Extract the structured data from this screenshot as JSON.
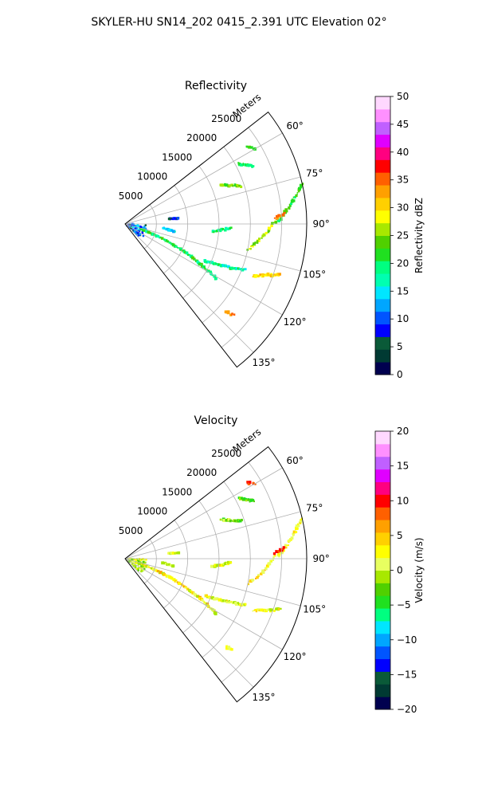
{
  "figure": {
    "suptitle": "SKYLER-HU  SN14_202  0415_2.391 UTC Elevation 02°"
  },
  "colors": {
    "reflectivity_cmap": [
      "#00004f",
      "#003a33",
      "#0a5a38",
      "#0000ff",
      "#0055ff",
      "#00a6ff",
      "#00e6ff",
      "#00ffb0",
      "#00ff80",
      "#20e020",
      "#50d000",
      "#a8e800",
      "#ffff00",
      "#ffd000",
      "#ffa000",
      "#ff6000",
      "#ff0000",
      "#ff0080",
      "#e000ff",
      "#c060ff",
      "#ff90ff",
      "#ffd8ff"
    ],
    "velocity_cmap": [
      "#00004f",
      "#003a33",
      "#0a5a38",
      "#0000ff",
      "#0055ff",
      "#00a6ff",
      "#00e6ff",
      "#00ff80",
      "#20e020",
      "#50d000",
      "#a8e800",
      "#e8ff60",
      "#ffff00",
      "#ffd000",
      "#ffa000",
      "#ff6000",
      "#ff0000",
      "#ff0080",
      "#e000ff",
      "#c060ff",
      "#ff90ff",
      "#ffd8ff"
    ]
  },
  "chart_data": [
    {
      "type": "heatmap",
      "projection": "polar-sector",
      "title": "Reflectivity",
      "range_axis_label": "Meters",
      "range_ticks": [
        5000,
        10000,
        15000,
        20000,
        25000
      ],
      "range_tick_labels": [
        "5000",
        "10000",
        "15000",
        "20000",
        "25000"
      ],
      "rmax": 29000,
      "azimuth_range": [
        52,
        142
      ],
      "azimuth_ticks": [
        60,
        75,
        90,
        105,
        120,
        135
      ],
      "azimuth_tick_labels": [
        "60°",
        "75°",
        "90°",
        "105°",
        "120°",
        "135°"
      ],
      "grid": true,
      "colorbar": {
        "label": "Reflectivity dBZ",
        "min": 0,
        "max": 50,
        "ticks": [
          0,
          5,
          10,
          15,
          20,
          25,
          30,
          35,
          40,
          45,
          50
        ],
        "tick_labels": [
          "0",
          "5",
          "10",
          "15",
          "20",
          "25",
          "30",
          "35",
          "40",
          "45",
          "50"
        ]
      },
      "echo_bands": [
        {
          "az_start": 108,
          "r_start": 2500,
          "az_end": 121,
          "r_end": 17000,
          "value": 20,
          "spread": 4
        },
        {
          "az_start": 115,
          "r_start": 14000,
          "az_end": 111,
          "r_end": 20500,
          "value": 18,
          "spread": 3
        },
        {
          "az_start": 112,
          "r_start": 22000,
          "az_end": 108,
          "r_end": 26000,
          "value": 30,
          "spread": 3
        },
        {
          "az_start": 102,
          "r_start": 20000,
          "az_end": 89,
          "r_end": 24000,
          "value": 26,
          "spread": 3
        },
        {
          "az_start": 89,
          "r_start": 24500,
          "az_end": 77,
          "r_end": 29000,
          "value": 22,
          "spread": 2
        },
        {
          "az_start": 88,
          "r_start": 24000,
          "az_end": 86,
          "r_end": 25500,
          "value": 34,
          "spread": 2
        },
        {
          "az_start": 95,
          "r_start": 14000,
          "az_end": 92,
          "r_end": 17000,
          "value": 20,
          "spread": 3
        },
        {
          "az_start": 131,
          "r_start": 21500,
          "az_end": 130,
          "r_end": 22500,
          "value": 34,
          "spread": 1
        },
        {
          "az_start": 68,
          "r_start": 16500,
          "az_end": 72,
          "r_end": 19500,
          "value": 24,
          "spread": 3
        },
        {
          "az_start": 62,
          "r_start": 20500,
          "az_end": 66,
          "r_end": 22500,
          "value": 20,
          "spread": 2
        },
        {
          "az_start": 58,
          "r_start": 23000,
          "az_end": 60,
          "r_end": 24000,
          "value": 22,
          "spread": 1
        },
        {
          "az_start": 83,
          "r_start": 7000,
          "az_end": 84,
          "r_end": 8500,
          "value": 8,
          "spread": 2
        },
        {
          "az_start": 96,
          "r_start": 6000,
          "az_end": 99,
          "r_end": 8000,
          "value": 14,
          "spread": 2
        }
      ],
      "near_range_clutter_value": 10
    },
    {
      "type": "heatmap",
      "projection": "polar-sector",
      "title": "Velocity",
      "range_axis_label": "Meters",
      "range_ticks": [
        5000,
        10000,
        15000,
        20000,
        25000
      ],
      "range_tick_labels": [
        "5000",
        "10000",
        "15000",
        "20000",
        "25000"
      ],
      "rmax": 29000,
      "azimuth_range": [
        52,
        142
      ],
      "azimuth_ticks": [
        60,
        75,
        90,
        105,
        120,
        135
      ],
      "azimuth_tick_labels": [
        "60°",
        "75°",
        "90°",
        "105°",
        "120°",
        "135°"
      ],
      "grid": true,
      "colorbar": {
        "label": "Velocity (m/s)",
        "min": -20,
        "max": 20,
        "ticks": [
          -20,
          -15,
          -10,
          -5,
          0,
          5,
          10,
          15,
          20
        ],
        "tick_labels": [
          "−20",
          "−15",
          "−10",
          "−5",
          "0",
          "5",
          "10",
          "15",
          "20"
        ]
      },
      "echo_bands": [
        {
          "az_start": 108,
          "r_start": 2500,
          "az_end": 121,
          "r_end": 17000,
          "value": 2,
          "spread": 4
        },
        {
          "az_start": 115,
          "r_start": 14000,
          "az_end": 111,
          "r_end": 20500,
          "value": 1,
          "spread": 3
        },
        {
          "az_start": 112,
          "r_start": 22000,
          "az_end": 108,
          "r_end": 26000,
          "value": 2,
          "spread": 3
        },
        {
          "az_start": 102,
          "r_start": 20000,
          "az_end": 89,
          "r_end": 24000,
          "value": 3,
          "spread": 3
        },
        {
          "az_start": 89,
          "r_start": 24500,
          "az_end": 77,
          "r_end": 29000,
          "value": 2,
          "spread": 2
        },
        {
          "az_start": 88,
          "r_start": 24000,
          "az_end": 86,
          "r_end": 25500,
          "value": 9,
          "spread": 2
        },
        {
          "az_start": 95,
          "r_start": 14000,
          "az_end": 92,
          "r_end": 17000,
          "value": 1,
          "spread": 3
        },
        {
          "az_start": 131,
          "r_start": 21500,
          "az_end": 130,
          "r_end": 22500,
          "value": 2,
          "spread": 1
        },
        {
          "az_start": 68,
          "r_start": 16500,
          "az_end": 72,
          "r_end": 19500,
          "value": -2,
          "spread": 3
        },
        {
          "az_start": 62,
          "r_start": 20500,
          "az_end": 66,
          "r_end": 22500,
          "value": -3,
          "spread": 2
        },
        {
          "az_start": 58,
          "r_start": 23000,
          "az_end": 60,
          "r_end": 24000,
          "value": 9,
          "spread": 1
        },
        {
          "az_start": 83,
          "r_start": 7000,
          "az_end": 84,
          "r_end": 8500,
          "value": 1,
          "spread": 2
        },
        {
          "az_start": 96,
          "r_start": 6000,
          "az_end": 99,
          "r_end": 8000,
          "value": 0,
          "spread": 2
        }
      ],
      "near_range_clutter_value": 0
    }
  ]
}
